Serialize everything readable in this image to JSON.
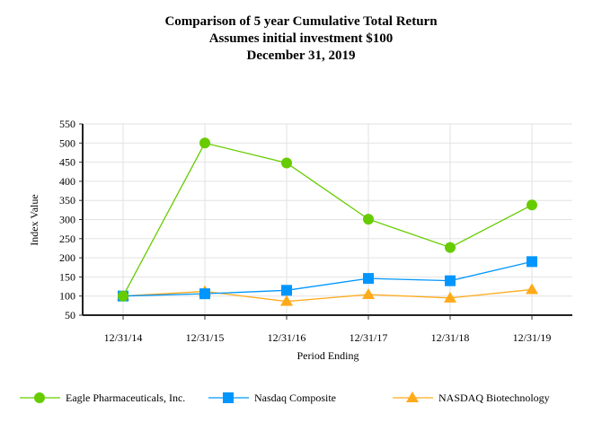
{
  "chart_data": {
    "type": "line",
    "title": [
      "Comparison of  5 year Cumulative Total Return",
      "Assumes initial investment $100",
      "December 31, 2019"
    ],
    "xlabel": "Period Ending",
    "ylabel": "Index Value",
    "categories": [
      "12/31/14",
      "12/31/15",
      "12/31/16",
      "12/31/17",
      "12/31/18",
      "12/31/19"
    ],
    "ylim": [
      50,
      550
    ],
    "yticks": [
      50,
      100,
      150,
      200,
      250,
      300,
      350,
      400,
      450,
      500,
      550
    ],
    "grid": true,
    "legend": "bottom",
    "series": [
      {
        "name": "Eagle Pharmaceuticals, Inc.",
        "color": "#66cc00",
        "marker": "circle",
        "values": [
          100,
          500,
          448,
          301,
          227,
          338
        ]
      },
      {
        "name": "Nasdaq Composite",
        "color": "#0096ff",
        "marker": "square",
        "values": [
          100,
          106,
          115,
          146,
          140,
          190
        ]
      },
      {
        "name": "NASDAQ Biotechnology",
        "color": "#ffaa1a",
        "marker": "triangle",
        "values": [
          100,
          112,
          86,
          104,
          95,
          117
        ]
      }
    ]
  }
}
